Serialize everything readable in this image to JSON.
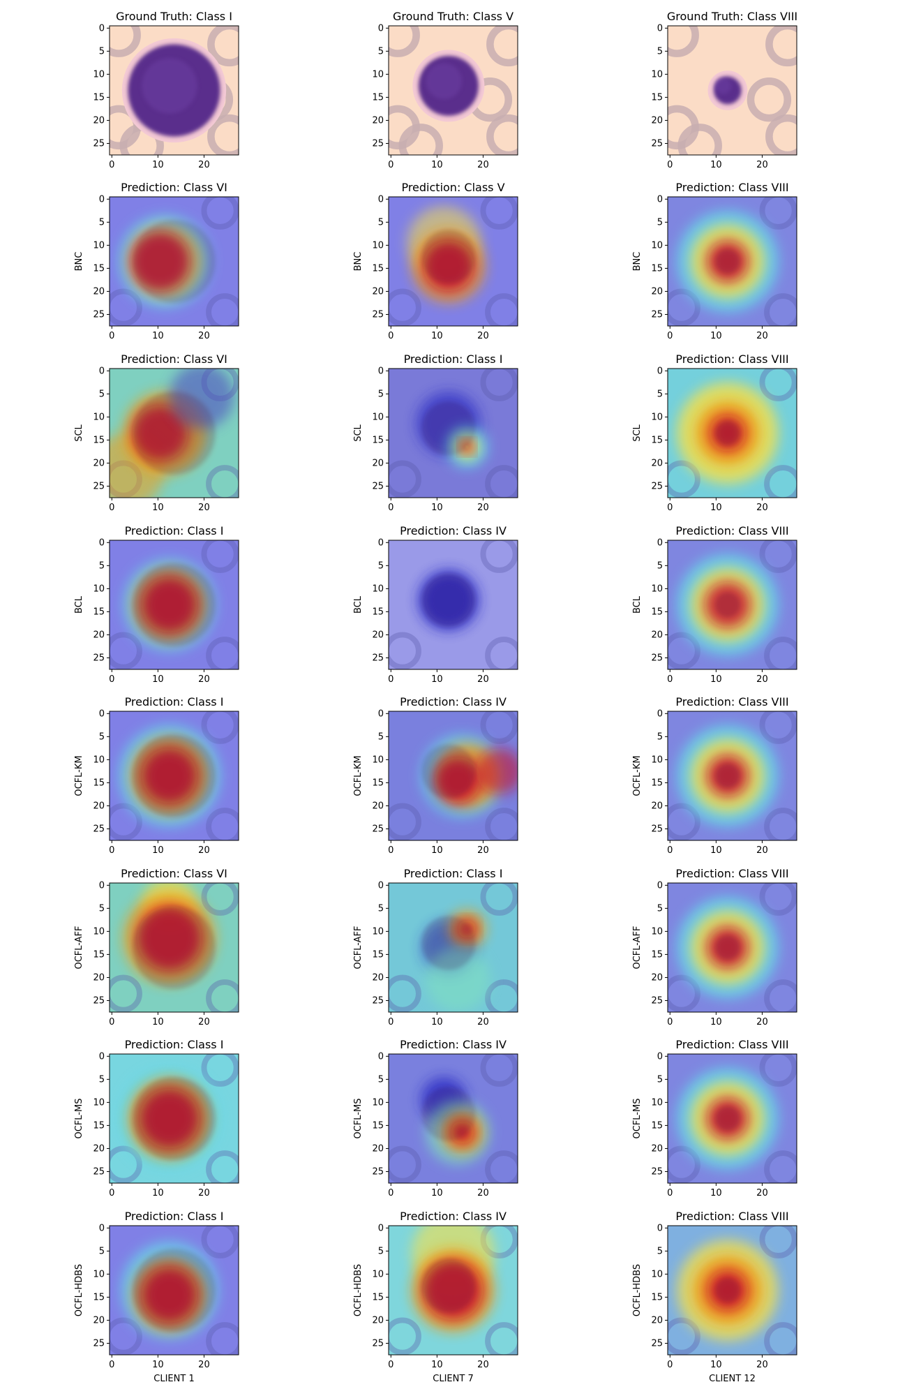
{
  "figure": {
    "columns": [
      {
        "client_label": "CLIENT 1"
      },
      {
        "client_label": "CLIENT 7"
      },
      {
        "client_label": "CLIENT 12"
      }
    ],
    "rows": [
      {
        "ylabel": "",
        "titles": [
          "Ground Truth: Class I",
          "Ground Truth: Class V",
          "Ground Truth: Class VIII"
        ]
      },
      {
        "ylabel": "BNC",
        "titles": [
          "Prediction: Class VI",
          "Prediction: Class V",
          "Prediction: Class VIII"
        ]
      },
      {
        "ylabel": "SCL",
        "titles": [
          "Prediction: Class VI",
          "Prediction: Class I",
          "Prediction: Class VIII"
        ]
      },
      {
        "ylabel": "BCL",
        "titles": [
          "Prediction: Class I",
          "Prediction: Class IV",
          "Prediction: Class VIII"
        ]
      },
      {
        "ylabel": "OCFL-KM",
        "titles": [
          "Prediction: Class I",
          "Prediction: Class IV",
          "Prediction: Class VIII"
        ]
      },
      {
        "ylabel": "OCFL-AFF",
        "titles": [
          "Prediction: Class VI",
          "Prediction: Class I",
          "Prediction: Class VIII"
        ]
      },
      {
        "ylabel": "OCFL-MS",
        "titles": [
          "Prediction: Class I",
          "Prediction: Class IV",
          "Prediction: Class VIII"
        ]
      },
      {
        "ylabel": "OCFL-HDBS",
        "titles": [
          "Prediction: Class I",
          "Prediction: Class IV",
          "Prediction: Class VIII"
        ]
      }
    ],
    "x_ticks": [
      0,
      10,
      20
    ],
    "y_ticks": [
      0,
      5,
      10,
      15,
      20,
      25
    ]
  }
}
